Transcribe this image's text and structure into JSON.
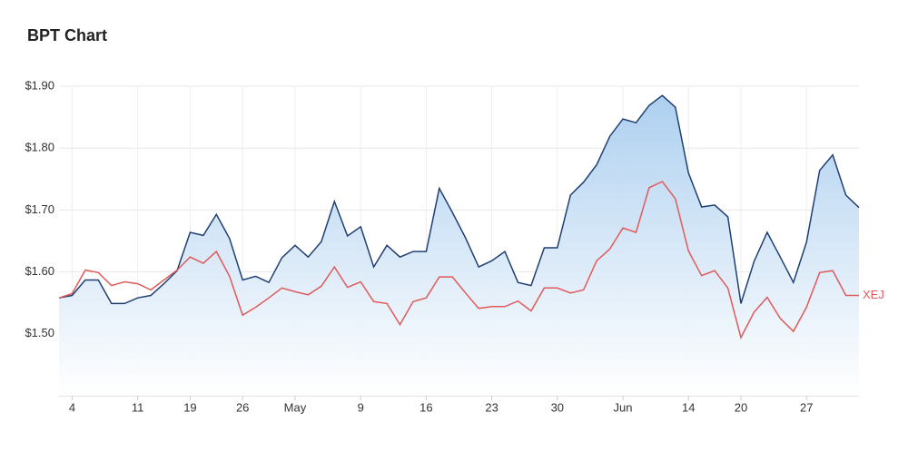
{
  "chart_data": {
    "type": "line",
    "title": "BPT Chart",
    "categories": [
      null,
      "4",
      null,
      null,
      null,
      null,
      "11",
      null,
      null,
      null,
      "19",
      null,
      null,
      null,
      "26",
      null,
      null,
      null,
      "May",
      null,
      null,
      null,
      null,
      "9",
      null,
      null,
      null,
      null,
      "16",
      null,
      null,
      null,
      null,
      "23",
      null,
      null,
      null,
      null,
      "30",
      null,
      null,
      null,
      null,
      "Jun",
      null,
      null,
      null,
      null,
      "14",
      null,
      null,
      null,
      "20",
      null,
      null,
      null,
      null,
      "27",
      null,
      null,
      null,
      null
    ],
    "series": [
      {
        "color": "#1f3f73",
        "area": true,
        "values": [
          1.558,
          1.562,
          1.587,
          1.587,
          1.549,
          1.549,
          1.558,
          1.562,
          1.581,
          1.602,
          1.664,
          1.659,
          1.693,
          1.654,
          1.587,
          1.593,
          1.583,
          1.623,
          1.643,
          1.624,
          1.649,
          1.714,
          1.658,
          1.673,
          1.608,
          1.643,
          1.624,
          1.633,
          1.633,
          1.735,
          1.696,
          1.655,
          1.608,
          1.618,
          1.633,
          1.583,
          1.578,
          1.639,
          1.639,
          1.724,
          1.745,
          1.773,
          1.819,
          1.847,
          1.841,
          1.869,
          1.885,
          1.866,
          1.76,
          1.705,
          1.708,
          1.689,
          1.549,
          1.617,
          1.664,
          1.624,
          1.583,
          1.648,
          1.764,
          1.789,
          1.724,
          1.704
        ]
      },
      {
        "name": "XEJ",
        "color": "#e05a5a",
        "values": [
          1.558,
          1.565,
          1.603,
          1.599,
          1.578,
          1.584,
          1.581,
          1.571,
          1.587,
          1.603,
          1.624,
          1.614,
          1.633,
          1.593,
          1.53,
          1.543,
          1.558,
          1.574,
          1.568,
          1.563,
          1.577,
          1.608,
          1.575,
          1.584,
          1.552,
          1.549,
          1.515,
          1.552,
          1.558,
          1.592,
          1.592,
          1.566,
          1.541,
          1.544,
          1.544,
          1.553,
          1.537,
          1.574,
          1.574,
          1.566,
          1.571,
          1.618,
          1.637,
          1.671,
          1.664,
          1.736,
          1.746,
          1.718,
          1.634,
          1.594,
          1.602,
          1.574,
          1.494,
          1.535,
          1.559,
          1.525,
          1.504,
          1.543,
          1.599,
          1.602,
          1.562,
          1.562
        ]
      }
    ],
    "ylim": [
      1.4,
      1.9
    ],
    "yticks": [
      {
        "value": 1.5,
        "label": "$1.50"
      },
      {
        "value": 1.6,
        "label": "$1.60"
      },
      {
        "value": 1.7,
        "label": "$1.70"
      },
      {
        "value": 1.8,
        "label": "$1.80"
      },
      {
        "value": 1.9,
        "label": "$1.90"
      }
    ],
    "grid": true
  }
}
